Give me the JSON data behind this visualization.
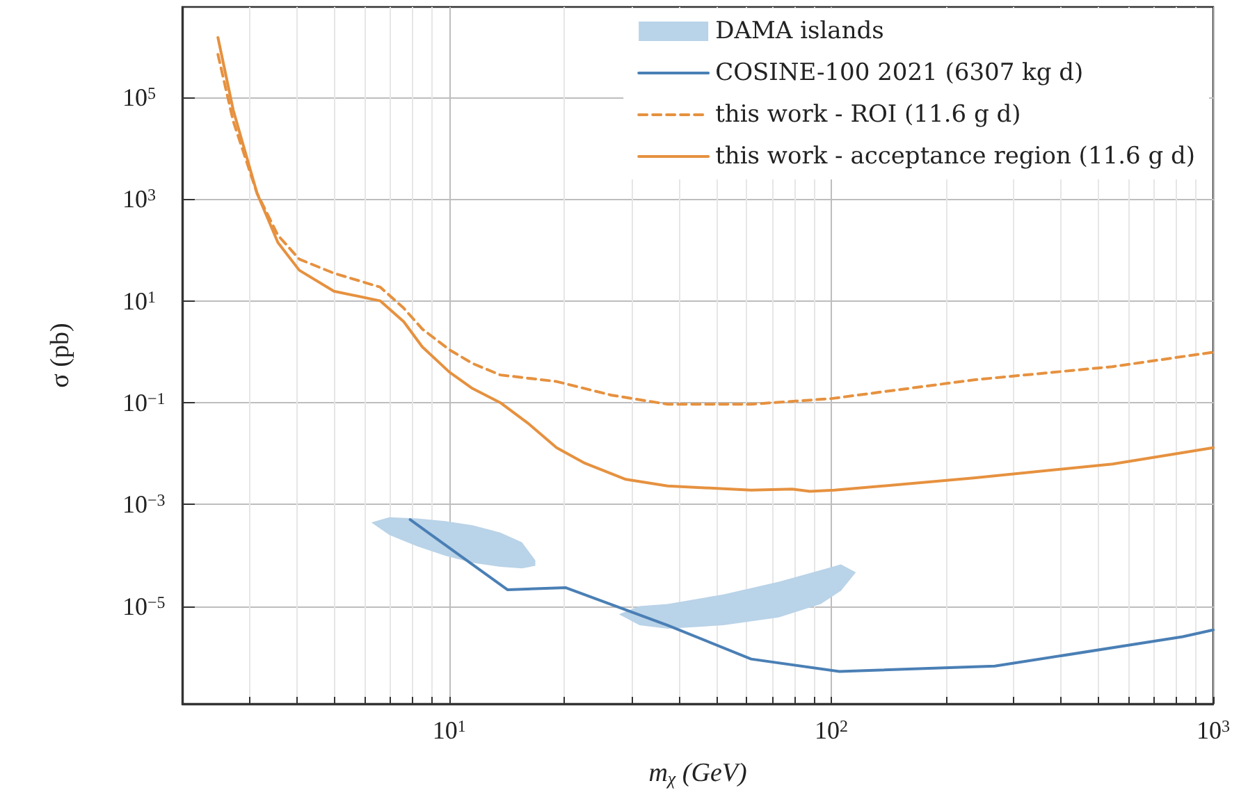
{
  "chart_data": {
    "type": "line",
    "xlabel": "m$_{χ}$ (GeV)",
    "ylabel": "σ (pb)",
    "log": "xy",
    "grid": true,
    "legend": "top right",
    "xlim": [
      2,
      1000
    ],
    "ylim": [
      1.2e-07,
      6000000.0
    ],
    "xticks": [
      {
        "value": 2,
        "label": null
      },
      {
        "value": 3,
        "label": null
      },
      {
        "value": 4,
        "label": null
      },
      {
        "value": 5,
        "label": null
      },
      {
        "value": 6,
        "label": null
      },
      {
        "value": 7,
        "label": null
      },
      {
        "value": 8,
        "label": null
      },
      {
        "value": 9,
        "label": null
      },
      {
        "value": 10,
        "label": "10$^{1}$"
      },
      {
        "value": 20,
        "label": null
      },
      {
        "value": 30,
        "label": null
      },
      {
        "value": 40,
        "label": null
      },
      {
        "value": 50,
        "label": null
      },
      {
        "value": 60,
        "label": null
      },
      {
        "value": 70,
        "label": null
      },
      {
        "value": 80,
        "label": null
      },
      {
        "value": 90,
        "label": null
      },
      {
        "value": 100,
        "label": "10$^{2}$"
      },
      {
        "value": 200,
        "label": null
      },
      {
        "value": 300,
        "label": null
      },
      {
        "value": 400,
        "label": null
      },
      {
        "value": 500,
        "label": null
      },
      {
        "value": 600,
        "label": null
      },
      {
        "value": 700,
        "label": null
      },
      {
        "value": 800,
        "label": null
      },
      {
        "value": 900,
        "label": null
      },
      {
        "value": 1000,
        "label": "10$^{3}$"
      }
    ],
    "yticks": [
      {
        "value": 1e-05,
        "label": "10$^{−5}$"
      },
      {
        "value": 0.001,
        "label": "10$^{−3}$"
      },
      {
        "value": 0.1,
        "label": "10$^{−1}$"
      },
      {
        "value": 10,
        "label": "10$^{1}$"
      },
      {
        "value": 1000,
        "label": "10$^{3}$"
      },
      {
        "value": 100000,
        "label": "10$^{5}$"
      }
    ],
    "series": [
      {
        "name": "DAMA islands",
        "type": "area",
        "color": "#b9d3e8",
        "x": [
          6.25,
          6.97,
          8.24,
          9.75,
          11.5,
          13.6,
          15.5,
          16.8,
          16.8,
          15.5,
          13.6,
          11.5,
          9.75,
          8.24,
          6.97
        ],
        "values": [
          0.00044,
          0.00056,
          0.00053,
          0.00047,
          0.00039,
          0.00028,
          0.00018,
          7.9e-05,
          6.2e-05,
          5.5e-05,
          5.9e-05,
          7.1e-05,
          9.8e-05,
          0.00015,
          0.00025
        ]
      },
      {
        "type": "area",
        "color": "#b9d3e8",
        "x": [
          27.8,
          31.5,
          37.3,
          52.2,
          72.9,
          93.9,
          106,
          116,
          106,
          93.9,
          72.9,
          52.2,
          37.3,
          31.5
        ],
        "values": [
          6.9e-06,
          1e-05,
          1.1e-05,
          1.7e-05,
          3e-05,
          5.1e-05,
          6.6e-05,
          4.6e-05,
          2e-05,
          1.1e-05,
          6e-06,
          4.2e-06,
          3.6e-06,
          4.2e-06
        ]
      },
      {
        "name": "COSINE-100 2021 (6307 kg d)",
        "line_style": "solid",
        "color": "#4a7fb5",
        "x": [
          7.9,
          14.2,
          20.2,
          37.3,
          61.7,
          105,
          268,
          832,
          1000
        ],
        "values": [
          0.0005,
          2.1e-05,
          2.3e-05,
          4.2e-06,
          9.1e-07,
          5.2e-07,
          6.6e-07,
          2.5e-06,
          3.4e-06
        ]
      },
      {
        "name": "this work - ROI (11.6 g d)",
        "line_style": "dashed",
        "color": "#e6913f",
        "x": [
          2.48,
          2.72,
          3.14,
          3.56,
          4.05,
          4.99,
          6.6,
          7.6,
          8.5,
          10,
          11.5,
          13.6,
          19.1,
          26.6,
          37.3,
          61.7,
          100,
          236,
          545,
          1000
        ],
        "values": [
          700000.0,
          34000.0,
          1300,
          195,
          66,
          35,
          18.6,
          7.2,
          2.8,
          1.1,
          0.59,
          0.35,
          0.26,
          0.14,
          0.093,
          0.093,
          0.12,
          0.28,
          0.51,
          0.98
        ]
      },
      {
        "name": "this work - acceptance region (11.6 g d)",
        "line_style": "solid",
        "color": "#e6913f",
        "x": [
          2.48,
          2.72,
          3.14,
          3.56,
          4.05,
          4.99,
          6.6,
          7.6,
          8.5,
          10,
          11.5,
          13.6,
          16.1,
          19.1,
          22.5,
          29,
          37.3,
          61.7,
          79,
          87.9,
          102,
          236,
          545,
          1000
        ],
        "values": [
          1500000.0,
          56000.0,
          1300,
          140,
          40,
          15.5,
          10,
          3.9,
          1.25,
          0.4,
          0.19,
          0.1,
          0.039,
          0.013,
          0.0066,
          0.0031,
          0.0023,
          0.0019,
          0.002,
          0.0018,
          0.0019,
          0.0033,
          0.0062,
          0.013
        ]
      }
    ]
  }
}
